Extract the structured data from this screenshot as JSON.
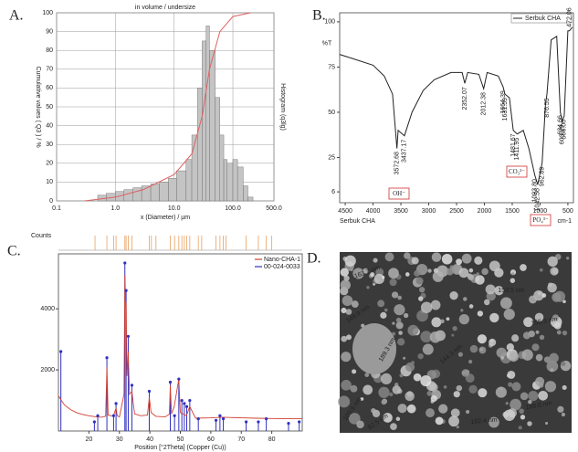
{
  "chart_data": [
    {
      "type": "histogram",
      "panel_label": "A.",
      "title": "in volume / undersize",
      "xlabel": "x (Diameter) / µm",
      "ylabel": "Cumulative values ( Q3 ) / %",
      "y2label": "Histogram (q3lg)",
      "xscale": "log",
      "xlim": [
        0.1,
        500
      ],
      "xticks": [
        {
          "value": 0.1,
          "label": "0.1"
        },
        {
          "value": 1,
          "label": "1.0"
        },
        {
          "value": 10,
          "label": "10.0"
        },
        {
          "value": 100,
          "label": "100.0"
        },
        {
          "value": 500,
          "label": "500.0"
        }
      ],
      "ylim": [
        0,
        100
      ],
      "yticks": [
        0,
        10,
        20,
        30,
        40,
        50,
        60,
        70,
        80,
        90,
        100
      ],
      "grid": true,
      "bins": [
        0.5,
        0.7,
        1,
        1.4,
        2,
        2.8,
        4,
        5.6,
        8,
        11,
        16,
        20,
        25,
        30,
        35,
        40,
        50,
        60,
        70,
        80,
        100,
        120,
        150,
        180,
        220
      ],
      "counts": [
        3,
        4,
        5,
        6,
        7,
        8,
        9,
        10,
        12,
        16,
        22,
        35,
        60,
        85,
        93,
        80,
        55,
        35,
        22,
        20,
        22,
        18,
        8,
        2
      ],
      "bar_color": "#c4c4c4",
      "cumulative": {
        "color": "#e06060",
        "x": [
          0.3,
          1,
          3,
          10,
          20,
          30,
          40,
          60,
          100,
          200
        ],
        "values": [
          0,
          2,
          6,
          14,
          25,
          45,
          70,
          90,
          98,
          100
        ]
      }
    },
    {
      "type": "line",
      "panel_label": "B.",
      "ylabel": "%T",
      "xlabel": "cm-1",
      "footer_label": "Serbuk CHA",
      "xlim": [
        4600,
        400
      ],
      "xticks": [
        4500,
        4000,
        3500,
        3000,
        2500,
        2000,
        1500,
        1000,
        500
      ],
      "ylim": [
        0,
        105
      ],
      "yticks": [
        6,
        25,
        50,
        75,
        100
      ],
      "legend": "top-right",
      "series": [
        {
          "name": "Serbuk CHA",
          "color": "#222222",
          "x": [
            4600,
            4400,
            4000,
            3800,
            3650,
            3572,
            3550,
            3437,
            3300,
            3100,
            2900,
            2600,
            2400,
            2352,
            2300,
            2100,
            2012,
            1950,
            1750,
            1664,
            1631,
            1550,
            1481,
            1411,
            1300,
            1200,
            1093,
            1042,
            962,
            900,
            876,
            800,
            700,
            634,
            603,
            566,
            500,
            472,
            420
          ],
          "values": [
            82,
            80,
            76,
            70,
            60,
            30,
            40,
            37,
            50,
            62,
            68,
            72,
            72,
            66,
            72,
            71,
            63,
            72,
            70,
            64,
            60,
            58,
            40,
            38,
            40,
            30,
            15,
            10,
            22,
            55,
            60,
            90,
            92,
            50,
            45,
            48,
            95,
            95,
            97
          ]
        }
      ],
      "peak_annotations": [
        {
          "value": 3572.68,
          "label": "3572.68"
        },
        {
          "value": 3437.17,
          "label": "3437.17"
        },
        {
          "value": 2352.07,
          "label": "2352.07"
        },
        {
          "value": 2012.38,
          "label": "2012.38"
        },
        {
          "value": 1664.39,
          "label": "1664.39"
        },
        {
          "value": 1631.59,
          "label": "1631.59"
        },
        {
          "value": 1481.67,
          "label": "1481.67"
        },
        {
          "value": 1411.95,
          "label": "1411.95"
        },
        {
          "value": 1093.8,
          "label": "1093.80"
        },
        {
          "value": 1042.56,
          "label": "1042.56"
        },
        {
          "value": 962.89,
          "label": "962.89"
        },
        {
          "value": 876.55,
          "label": "876.55"
        },
        {
          "value": 634.66,
          "label": "634.66"
        },
        {
          "value": 603.29,
          "label": "603.29"
        },
        {
          "value": 566.06,
          "label": "566.06"
        },
        {
          "value": 472.06,
          "label": "472.06"
        }
      ],
      "ion_labels": [
        "OH⁻",
        "CO₃²⁻",
        "PO₄³⁻"
      ],
      "ion_label_color": "#d03030"
    },
    {
      "type": "xrd",
      "panel_label": "C.",
      "ylabel": "Counts",
      "xlabel": "Position [°2Theta] (Copper (Cu))",
      "xlim": [
        10,
        90
      ],
      "xticks": [
        20,
        30,
        40,
        50,
        60,
        70,
        80
      ],
      "ylim": [
        0,
        5800
      ],
      "yticks": [
        2000,
        4000
      ],
      "series": [
        {
          "name": "Nano-CHA-1",
          "color": "#d04030",
          "x": [
            10,
            11,
            12,
            14,
            16,
            18,
            20,
            22,
            24,
            25.5,
            25.9,
            26.3,
            28,
            28.9,
            29.3,
            30,
            31.5,
            31.8,
            32.1,
            32.2,
            32.5,
            32.9,
            33.3,
            34.1,
            35,
            37,
            39.2,
            39.8,
            40.4,
            42,
            45,
            46.4,
            46.7,
            47.1,
            48,
            49.5,
            50,
            52,
            53.1,
            55,
            60,
            64,
            70,
            75,
            80,
            85,
            90
          ],
          "values": [
            1150,
            1000,
            850,
            700,
            600,
            540,
            500,
            470,
            450,
            480,
            2100,
            520,
            480,
            750,
            500,
            460,
            1200,
            5100,
            4000,
            4200,
            1800,
            2600,
            1200,
            1300,
            560,
            500,
            520,
            1100,
            600,
            480,
            460,
            550,
            1500,
            560,
            800,
            1700,
            600,
            500,
            800,
            420,
            430,
            450,
            430,
            420,
            410,
            400,
            400
          ]
        },
        {
          "name": "00-024-0033",
          "color": "#3030c0",
          "x": [
            10.8,
            21.8,
            22.9,
            25.9,
            28.1,
            28.9,
            31.8,
            32.2,
            32.9,
            34.1,
            39.8,
            46.7,
            48.1,
            49.5,
            50.5,
            51.3,
            52.1,
            53.1,
            55.9,
            61.7,
            63.0,
            64.1,
            71.6,
            75.6,
            78.2,
            85.5,
            89.0
          ],
          "values": [
            2600,
            300,
            500,
            2400,
            500,
            900,
            5500,
            4600,
            3100,
            1500,
            1300,
            1600,
            500,
            1700,
            1000,
            900,
            800,
            1000,
            400,
            350,
            500,
            400,
            300,
            300,
            400,
            250,
            300
          ]
        }
      ],
      "reference": {
        "color": "#e8a060",
        "x": [
          22,
          25.9,
          28.1,
          28.9,
          31.8,
          32.2,
          32.9,
          34.1,
          39.8,
          40.5,
          42,
          46.7,
          48.1,
          49.5,
          50.5,
          51.3,
          52.1,
          53.1,
          55.9,
          57,
          61.7,
          63,
          64.1,
          65,
          71.6,
          75.6,
          78.2,
          80
        ]
      }
    }
  ],
  "sem_image": {
    "panel_label": "D.",
    "label_color": "#30e040",
    "labels": [
      "163.7 nm",
      "149.9 nm",
      "153.5 nm",
      "155.3 nm",
      "189.3 nm",
      "144.3 nm",
      "100.9 nm",
      "82.5 nm",
      "182.4 nm",
      "188.8 nm"
    ]
  }
}
